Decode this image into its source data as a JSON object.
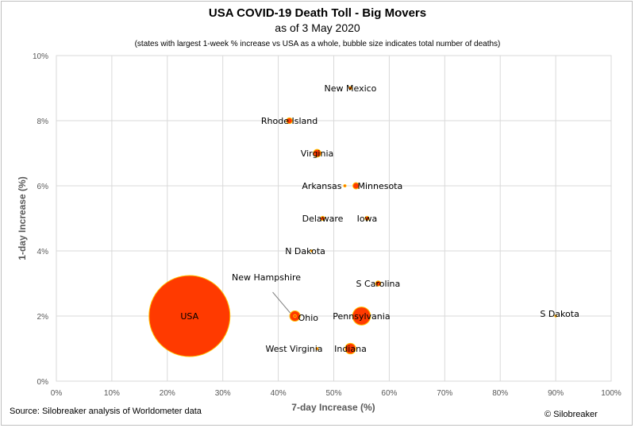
{
  "header": {
    "title": "USA COVID-19 Death Toll - Big Movers",
    "subtitle": "as of 3 May 2020",
    "note": "(states with largest 1-week % increase vs USA as a whole, bubble size indicates total number of deaths)"
  },
  "footer": {
    "source": "Source: Silobreaker analysis of Worldometer data",
    "copyright": "© Silobreaker"
  },
  "colors": {
    "bubble_fill": "#ff3a00",
    "bubble_stroke": "#ffc000",
    "grid": "#d9d9d9"
  },
  "chart_data": {
    "type": "scatter",
    "xlabel": "7-day Increase (%)",
    "ylabel": "1-day Increase (%)",
    "xlim": [
      0,
      100
    ],
    "ylim": [
      0,
      10
    ],
    "xticks": [
      "0%",
      "10%",
      "20%",
      "30%",
      "40%",
      "50%",
      "60%",
      "70%",
      "80%",
      "90%",
      "100%"
    ],
    "yticks": [
      "0%",
      "2%",
      "4%",
      "6%",
      "8%",
      "10%"
    ],
    "grid": true,
    "points": [
      {
        "label": "USA",
        "x": 24,
        "y": 2.0,
        "deaths": 67000
      },
      {
        "label": "New Mexico",
        "x": 53,
        "y": 9.0,
        "deaths": 90
      },
      {
        "label": "Rhode Island",
        "x": 42,
        "y": 8.0,
        "deaths": 350
      },
      {
        "label": "Virginia",
        "x": 47,
        "y": 7.0,
        "deaths": 600
      },
      {
        "label": "Arkansas",
        "x": 52,
        "y": 6.0,
        "deaths": 60
      },
      {
        "label": "Minnesota",
        "x": 54,
        "y": 6.0,
        "deaths": 400
      },
      {
        "label": "Delaware",
        "x": 48,
        "y": 5.0,
        "deaths": 170
      },
      {
        "label": "Iowa",
        "x": 56,
        "y": 5.0,
        "deaths": 170
      },
      {
        "label": "N Dakota",
        "x": 46,
        "y": 4.0,
        "deaths": 20
      },
      {
        "label": "S Carolina",
        "x": 58,
        "y": 3.0,
        "deaths": 280
      },
      {
        "label": "New Hampshire",
        "x": 43,
        "y": 2.0,
        "deaths": 80
      },
      {
        "label": "Ohio",
        "x": 43,
        "y": 2.0,
        "deaths": 1100
      },
      {
        "label": "Pennsylvania",
        "x": 55,
        "y": 2.0,
        "deaths": 3300
      },
      {
        "label": "S Dakota",
        "x": 90,
        "y": 2.0,
        "deaths": 15
      },
      {
        "label": "West Virginia",
        "x": 47,
        "y": 1.0,
        "deaths": 45
      },
      {
        "label": "Indiana",
        "x": 53,
        "y": 1.0,
        "deaths": 1150
      }
    ]
  }
}
